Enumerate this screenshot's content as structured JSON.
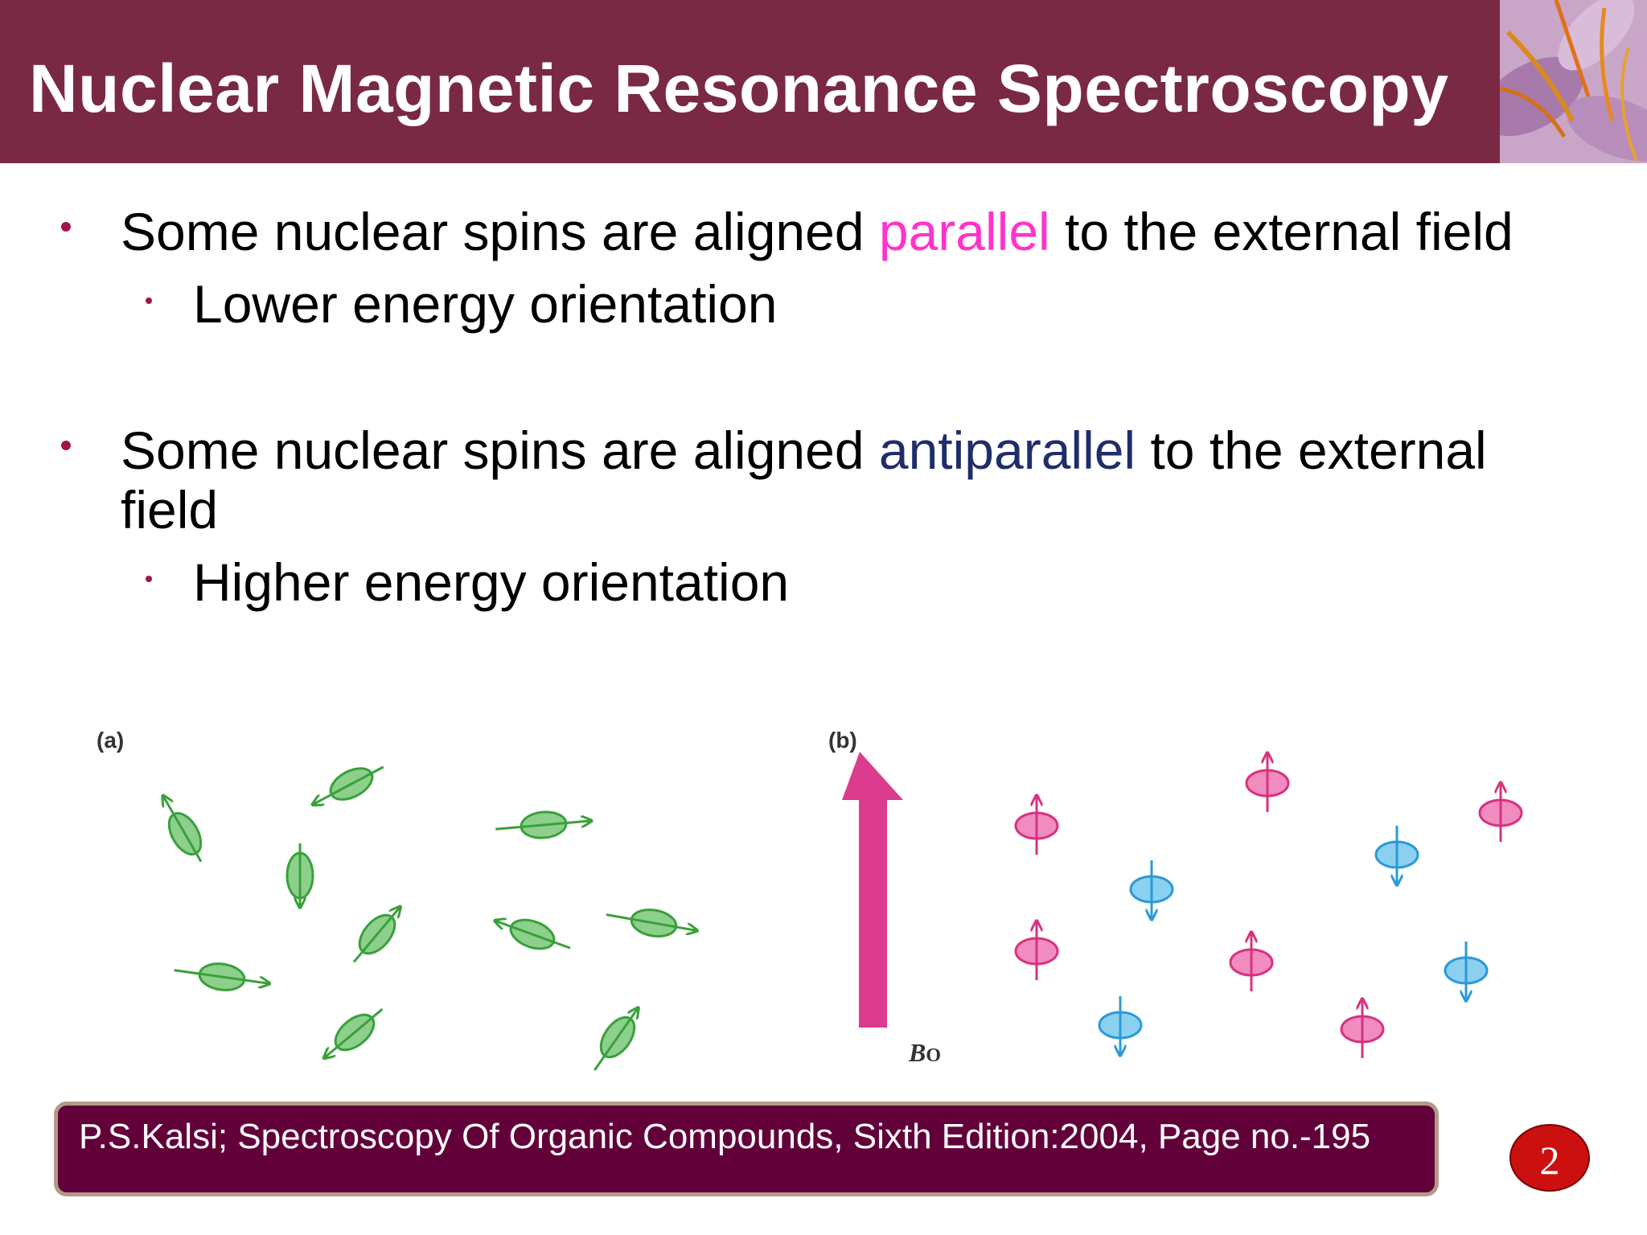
{
  "title": "Nuclear Magnetic Resonance Spectroscopy",
  "bullets": [
    {
      "pre": "Some nuclear spins are aligned ",
      "highlight": "parallel",
      "post": " to the external field",
      "sub": "Lower energy orientation"
    },
    {
      "pre": "Some nuclear spins are aligned ",
      "highlight": "antiparallel",
      "post": " to the external",
      "cont": "field",
      "sub": "Higher energy orientation"
    }
  ],
  "figure": {
    "panel_a_label": "(a)",
    "panel_b_label": "(b)",
    "field_label_main": "B",
    "field_label_sub": "O",
    "colors": {
      "random_spin": "#8cd08c",
      "random_spin_stroke": "#3aa03a",
      "parallel_spin": "#f08cc0",
      "parallel_spin_stroke": "#d8327f",
      "antiparallel_spin": "#8cd0f0",
      "antiparallel_spin_stroke": "#2a9ad8",
      "field_arrow": "#dc3c8e"
    }
  },
  "reference": "P.S.Kalsi; Spectroscopy Of Organic Compounds, Sixth Edition:2004, Page no.-195",
  "page_number": "2",
  "colors": {
    "title_bar": "#7a2944",
    "bullet": "#a0144e",
    "parallel_text": "#ff33cc",
    "antiparallel_text": "#1f2d6b",
    "reference_box": "#62003a",
    "page_badge": "#cc1010"
  }
}
